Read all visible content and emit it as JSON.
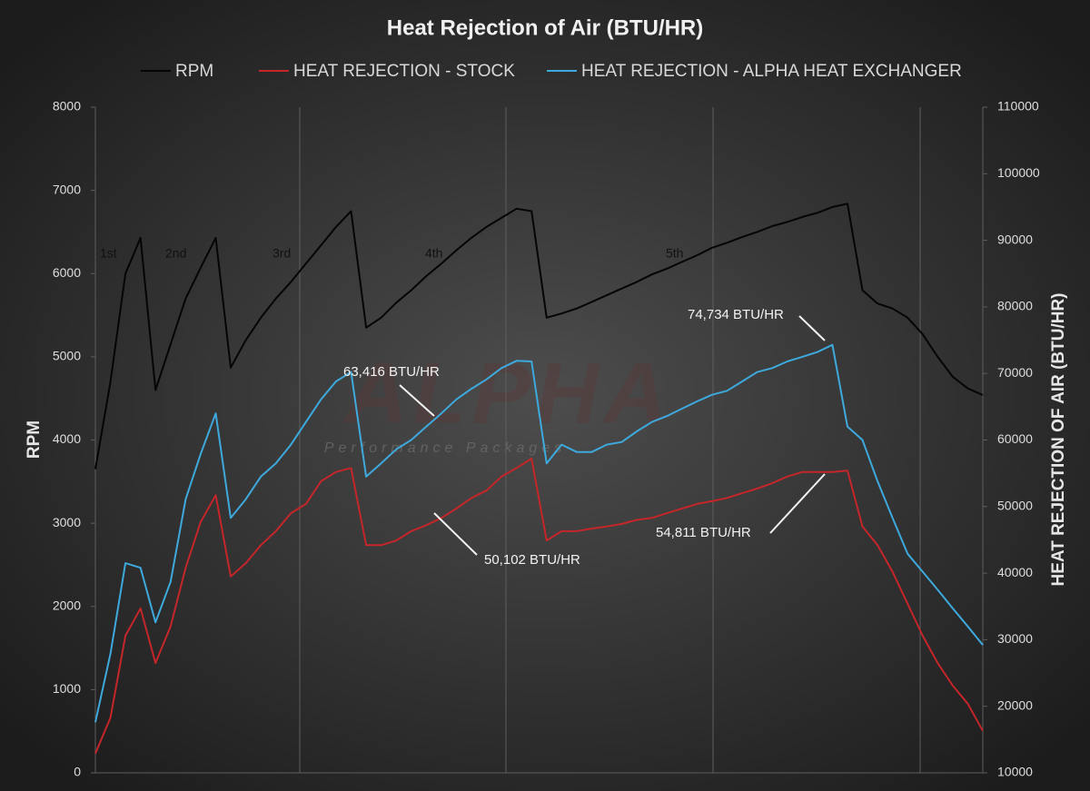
{
  "chart_data": {
    "type": "line",
    "title": "Heat Rejection of Air (BTU/HR)",
    "y_label": "RPM",
    "y2_label": "HEAT REJECTION OF AIR (BTU/HR)",
    "legend": "top",
    "grid": false,
    "categories": [
      null,
      null,
      null,
      null,
      null,
      null,
      null,
      null,
      null,
      null,
      null,
      null,
      null,
      null,
      null,
      null,
      null,
      null,
      null,
      null,
      null,
      null,
      null,
      null,
      null,
      null,
      null,
      null,
      null,
      null,
      null,
      null,
      null,
      null,
      null,
      null,
      null,
      null,
      null,
      null,
      null,
      null,
      null,
      null,
      null,
      null,
      null,
      null,
      null,
      null,
      null,
      null,
      null,
      null,
      null,
      null,
      null,
      null,
      null,
      null
    ],
    "ylim": [
      0,
      8000
    ],
    "yticks": [
      0,
      1000,
      2000,
      3000,
      4000,
      5000,
      6000,
      7000,
      8000
    ],
    "y2lim": [
      10000,
      110000
    ],
    "y2ticks": [
      10000,
      20000,
      30000,
      40000,
      50000,
      60000,
      70000,
      80000,
      90000,
      100000,
      110000
    ],
    "series": [
      {
        "name": "RPM",
        "color": "#050505",
        "values": [
          3650,
          4700,
          6000,
          6430,
          4600,
          5150,
          5700,
          6070,
          6430,
          4870,
          5200,
          5470,
          5700,
          5900,
          6120,
          6340,
          6560,
          6750,
          5350,
          5470,
          5650,
          5800,
          5970,
          6120,
          6280,
          6430,
          6560,
          6670,
          6780,
          6750,
          5470,
          5520,
          5580,
          5660,
          5740,
          5820,
          5900,
          5990,
          6060,
          6140,
          6220,
          6310,
          6370,
          6440,
          6500,
          6570,
          6620,
          6680,
          6730,
          6800,
          6840,
          5800,
          5640,
          5580,
          5470,
          5270,
          5000,
          4760,
          4620,
          4540
        ]
      },
      {
        "name": "HEAT REJECTION - STOCK",
        "color": "#c4262a",
        "axis": "y2",
        "values": [
          12900,
          18300,
          30600,
          34700,
          26500,
          32000,
          40800,
          47700,
          51700,
          39500,
          41500,
          44200,
          46300,
          49000,
          50400,
          53800,
          55200,
          55800,
          44200,
          44200,
          44900,
          46300,
          47200,
          48300,
          49700,
          51300,
          52400,
          54500,
          55800,
          57200,
          44900,
          46300,
          46300,
          46700,
          47000,
          47400,
          48000,
          48300,
          49000,
          49700,
          50400,
          50800,
          51300,
          52000,
          52700,
          53500,
          54500,
          55200,
          55200,
          55200,
          55400,
          47000,
          44200,
          40200,
          35400,
          30600,
          26500,
          23100,
          20400,
          16300
        ]
      },
      {
        "name": "HEAT REJECTION - ALPHA HEAT EXCHANGER",
        "color": "#3ea9dc",
        "axis": "y2",
        "values": [
          17600,
          27900,
          41500,
          40800,
          32600,
          38700,
          51100,
          57900,
          64000,
          48300,
          51100,
          54500,
          56500,
          59300,
          62700,
          66100,
          68800,
          70200,
          54500,
          56500,
          58600,
          60000,
          62000,
          64000,
          66100,
          67700,
          69100,
          70800,
          71900,
          71800,
          56500,
          59300,
          58200,
          58200,
          59300,
          59700,
          61300,
          62700,
          63600,
          64700,
          65800,
          66800,
          67400,
          68800,
          70200,
          70800,
          71800,
          72500,
          73200,
          74300,
          62000,
          60000,
          53800,
          48300,
          42900,
          40200,
          37500,
          34700,
          32000,
          29200
        ]
      }
    ],
    "gear_labels": [
      "1st",
      "2nd",
      "3rd",
      "4th",
      "5th"
    ],
    "annotations": [
      {
        "text": "63,416 BTU/HR"
      },
      {
        "text": "50,102 BTU/HR"
      },
      {
        "text": "74,734 BTU/HR"
      },
      {
        "text": "54,811 BTU/HR"
      }
    ],
    "watermark": {
      "logo": "ALPHA",
      "tagline": "Performance Packages"
    }
  }
}
